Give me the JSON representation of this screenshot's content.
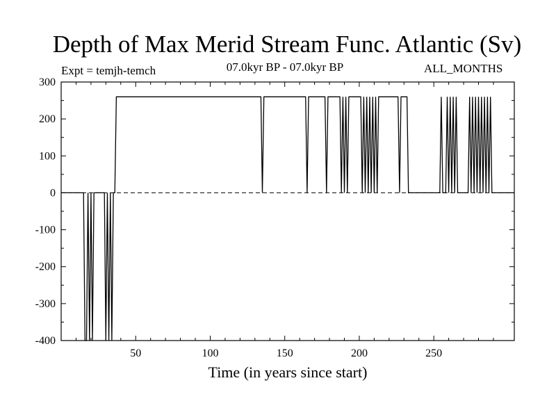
{
  "chart_data": {
    "type": "line",
    "title": "Depth of Max Merid Stream Func. Atlantic (Sv)",
    "expt_label": "Expt = temjh-temch",
    "period_label": "07.0kyr BP - 07.0kyr BP",
    "months_label": "ALL_MONTHS",
    "xlabel": "Time (in years since start)",
    "ylabel": "",
    "xlim": [
      0,
      304
    ],
    "ylim": [
      -400,
      300
    ],
    "xticks": [
      50,
      100,
      150,
      200,
      250
    ],
    "yticks": [
      300,
      200,
      100,
      0,
      -100,
      -200,
      -300,
      -400
    ],
    "zero_line": "dashed",
    "series": [
      {
        "points": [
          [
            0,
            0
          ],
          [
            15,
            0
          ],
          [
            16,
            -400
          ],
          [
            17,
            -400
          ],
          [
            18,
            0
          ],
          [
            19,
            -400
          ],
          [
            20,
            0
          ],
          [
            21,
            -400
          ],
          [
            22,
            0
          ],
          [
            23,
            0
          ],
          [
            29,
            0
          ],
          [
            30,
            -400
          ],
          [
            31,
            0
          ],
          [
            32,
            -400
          ],
          [
            33,
            0
          ],
          [
            34,
            -400
          ],
          [
            35,
            0
          ],
          [
            36,
            0
          ],
          [
            37,
            260
          ],
          [
            134,
            260
          ],
          [
            135,
            0
          ],
          [
            136,
            260
          ],
          [
            164,
            260
          ],
          [
            165,
            0
          ],
          [
            166,
            260
          ],
          [
            177,
            260
          ],
          [
            178,
            0
          ],
          [
            179,
            260
          ],
          [
            187,
            260
          ],
          [
            188,
            0
          ],
          [
            189,
            260
          ],
          [
            190,
            0
          ],
          [
            191,
            260
          ],
          [
            192,
            0
          ],
          [
            193,
            260
          ],
          [
            201,
            260
          ],
          [
            202,
            0
          ],
          [
            203,
            260
          ],
          [
            204,
            0
          ],
          [
            205,
            260
          ],
          [
            206,
            0
          ],
          [
            207,
            260
          ],
          [
            208,
            0
          ],
          [
            209,
            260
          ],
          [
            210,
            0
          ],
          [
            211,
            260
          ],
          [
            212,
            0
          ],
          [
            213,
            260
          ],
          [
            226,
            260
          ],
          [
            227,
            0
          ],
          [
            228,
            260
          ],
          [
            232,
            260
          ],
          [
            233,
            0
          ],
          [
            254,
            0
          ],
          [
            255,
            260
          ],
          [
            256,
            0
          ],
          [
            258,
            0
          ],
          [
            259,
            260
          ],
          [
            260,
            0
          ],
          [
            261,
            260
          ],
          [
            262,
            0
          ],
          [
            263,
            260
          ],
          [
            264,
            0
          ],
          [
            265,
            260
          ],
          [
            266,
            0
          ],
          [
            273,
            0
          ],
          [
            274,
            260
          ],
          [
            275,
            0
          ],
          [
            276,
            260
          ],
          [
            277,
            0
          ],
          [
            278,
            260
          ],
          [
            279,
            0
          ],
          [
            280,
            260
          ],
          [
            281,
            0
          ],
          [
            282,
            260
          ],
          [
            283,
            0
          ],
          [
            284,
            260
          ],
          [
            285,
            0
          ],
          [
            286,
            260
          ],
          [
            287,
            0
          ],
          [
            288,
            260
          ],
          [
            289,
            0
          ],
          [
            304,
            0
          ]
        ]
      }
    ]
  }
}
